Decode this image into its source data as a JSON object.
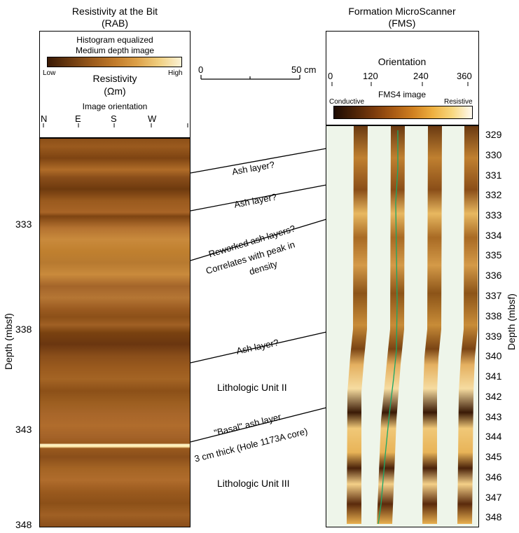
{
  "rab": {
    "title": "Resistivity at the Bit",
    "subtitle": "(RAB)",
    "scale_title": "Histogram equalized",
    "scale_subtitle": "Medium depth image",
    "low": "Low",
    "high": "High",
    "resistivity": "Resistivity",
    "unit": "(Ωm)",
    "orientation_title": "Image orientation",
    "orientations": [
      "N",
      "E",
      "S",
      "W"
    ],
    "depth_ticks": [
      "333",
      "338",
      "343",
      "348"
    ],
    "depth_label": "Depth (mbsf)"
  },
  "scale_bar": {
    "left": "0",
    "right": "50 cm"
  },
  "fms": {
    "title": "Formation MicroScanner",
    "subtitle": "(FMS)",
    "orientation_title": "Orientation",
    "orientation_ticks": [
      "0",
      "120",
      "240",
      "360"
    ],
    "image_title": "FMS4 image",
    "conductive": "Conductive",
    "resistive": "Resistive",
    "depth_ticks": [
      "329",
      "330",
      "331",
      "332",
      "333",
      "334",
      "335",
      "336",
      "337",
      "338",
      "339",
      "340",
      "341",
      "342",
      "343",
      "344",
      "345",
      "346",
      "347",
      "348"
    ],
    "depth_label": "Depth (mbsf)"
  },
  "annotations": {
    "ash1": "Ash layer?",
    "ash2": "Ash layer?",
    "reworked": "Reworked ash layers?",
    "correlates1": "Correlates with peak in",
    "correlates2": "density",
    "ash3": "Ash layer?",
    "unit2": "Lithologic Unit II",
    "basal": "\"Basal\" ash layer",
    "thick": "3 cm thick (Hole 1173A core)",
    "unit3": "Lithologic Unit III"
  },
  "colors": {
    "rab_dark": "#7a4210",
    "rab_light": "#c98a3c",
    "fms_bg": "#eef5ea",
    "fms_curve": "#1aa866"
  }
}
